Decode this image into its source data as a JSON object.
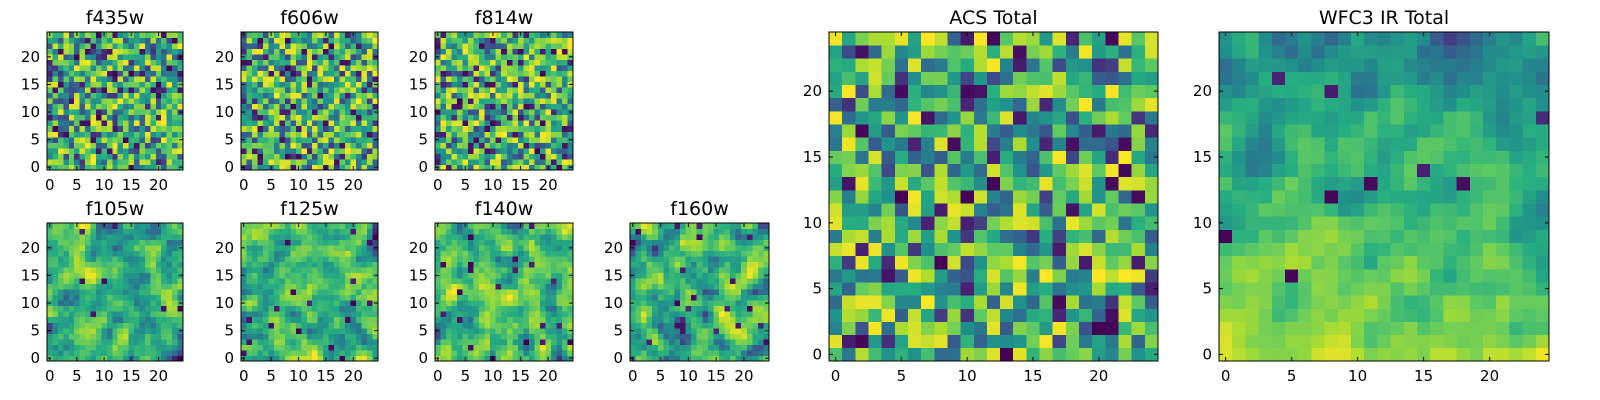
{
  "chart_data": [
    {
      "type": "heatmap",
      "title": "f435w",
      "grid": [
        25,
        25
      ],
      "xlim": [
        -0.5,
        24.5
      ],
      "ylim": [
        -0.5,
        24.5
      ],
      "xticks": [
        0,
        5,
        10,
        15,
        20
      ],
      "yticks": [
        0,
        5,
        10,
        15,
        20
      ],
      "colormap": "viridis",
      "texture": "fine",
      "seed": 11
    },
    {
      "type": "heatmap",
      "title": "f606w",
      "grid": [
        25,
        25
      ],
      "xlim": [
        -0.5,
        24.5
      ],
      "ylim": [
        -0.5,
        24.5
      ],
      "xticks": [
        0,
        5,
        10,
        15,
        20
      ],
      "yticks": [
        0,
        5,
        10,
        15,
        20
      ],
      "colormap": "viridis",
      "texture": "fine",
      "seed": 23
    },
    {
      "type": "heatmap",
      "title": "f814w",
      "grid": [
        25,
        25
      ],
      "xlim": [
        -0.5,
        24.5
      ],
      "ylim": [
        -0.5,
        24.5
      ],
      "xticks": [
        0,
        5,
        10,
        15,
        20
      ],
      "yticks": [
        0,
        5,
        10,
        15,
        20
      ],
      "colormap": "viridis",
      "texture": "fine",
      "seed": 37
    },
    {
      "type": "heatmap",
      "title": "f105w",
      "grid": [
        25,
        25
      ],
      "xlim": [
        -0.5,
        24.5
      ],
      "ylim": [
        -0.5,
        24.5
      ],
      "xticks": [
        0,
        5,
        10,
        15,
        20
      ],
      "yticks": [
        0,
        5,
        10,
        15,
        20
      ],
      "colormap": "viridis",
      "texture": "blurred",
      "seed": 41
    },
    {
      "type": "heatmap",
      "title": "f125w",
      "grid": [
        25,
        25
      ],
      "xlim": [
        -0.5,
        24.5
      ],
      "ylim": [
        -0.5,
        24.5
      ],
      "xticks": [
        0,
        5,
        10,
        15,
        20
      ],
      "yticks": [
        0,
        5,
        10,
        15,
        20
      ],
      "colormap": "viridis",
      "texture": "blurred",
      "seed": 53
    },
    {
      "type": "heatmap",
      "title": "f140w",
      "grid": [
        25,
        25
      ],
      "xlim": [
        -0.5,
        24.5
      ],
      "ylim": [
        -0.5,
        24.5
      ],
      "xticks": [
        0,
        5,
        10,
        15,
        20
      ],
      "yticks": [
        0,
        5,
        10,
        15,
        20
      ],
      "colormap": "viridis",
      "texture": "blurred",
      "seed": 67
    },
    {
      "type": "heatmap",
      "title": "f160w",
      "grid": [
        25,
        25
      ],
      "xlim": [
        -0.5,
        24.5
      ],
      "ylim": [
        -0.5,
        24.5
      ],
      "xticks": [
        0,
        5,
        10,
        15,
        20
      ],
      "yticks": [
        0,
        5,
        10,
        15,
        20
      ],
      "colormap": "viridis",
      "texture": "blurred",
      "seed": 79
    },
    {
      "type": "heatmap",
      "title": "ACS Total",
      "grid": [
        25,
        25
      ],
      "xlim": [
        -0.5,
        24.5
      ],
      "ylim": [
        -0.5,
        24.5
      ],
      "xticks": [
        0,
        5,
        10,
        15,
        20
      ],
      "yticks": [
        0,
        5,
        10,
        15,
        20
      ],
      "colormap": "viridis",
      "texture": "blocky",
      "seed": 97
    },
    {
      "type": "heatmap",
      "title": "WFC3 IR Total",
      "grid": [
        25,
        25
      ],
      "xlim": [
        -0.5,
        24.5
      ],
      "ylim": [
        -0.5,
        24.5
      ],
      "xticks": [
        0,
        5,
        10,
        15,
        20
      ],
      "yticks": [
        0,
        5,
        10,
        15,
        20
      ],
      "colormap": "viridis",
      "texture": "gradient",
      "seed": 113
    }
  ]
}
